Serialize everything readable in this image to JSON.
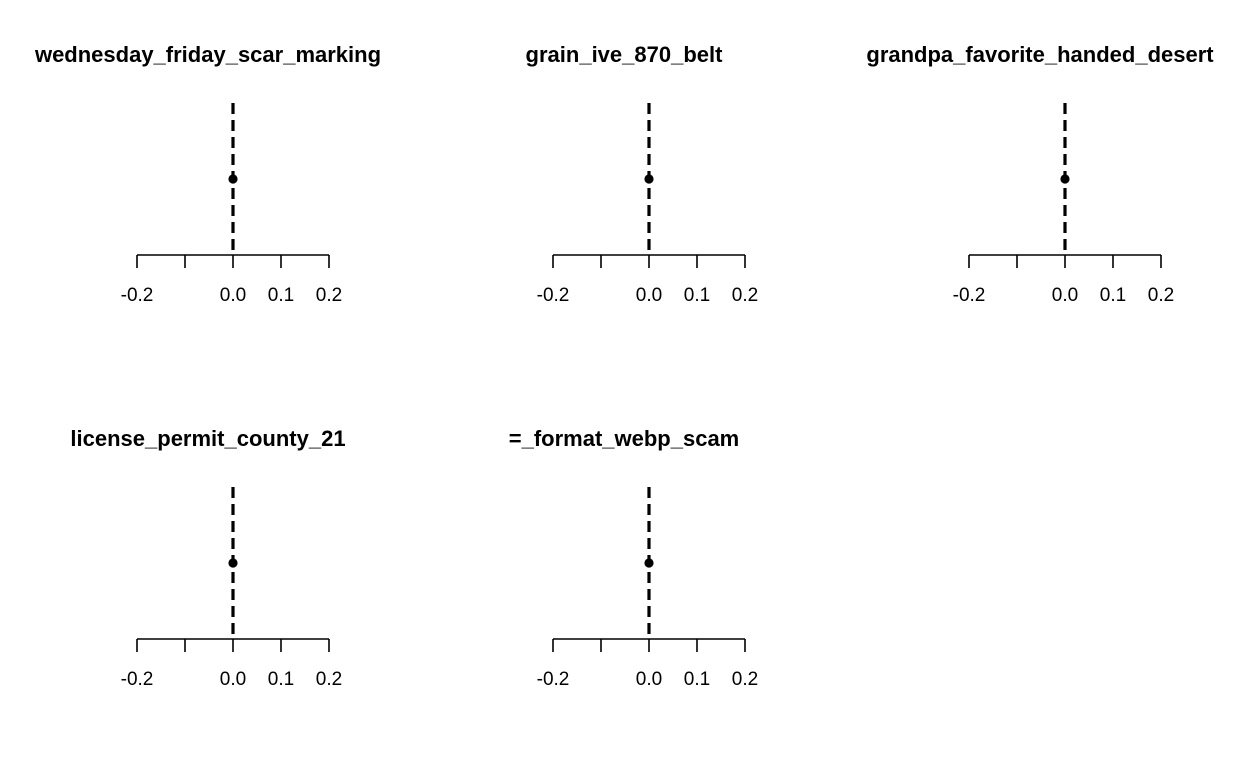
{
  "chart_data": [
    {
      "type": "scatter",
      "title": "wednesday_friday_scar_marking",
      "x_ticks": [
        -0.2,
        -0.1,
        0.0,
        0.1,
        0.2
      ],
      "x_tick_labels": [
        "-0.2",
        "",
        "0.0",
        "0.1",
        "0.2"
      ],
      "xlim": [
        -0.2,
        0.2
      ],
      "reference_line": {
        "x": 0.0,
        "style": "dashed"
      },
      "points": [
        {
          "x": 0.0
        }
      ]
    },
    {
      "type": "scatter",
      "title": "grain_ive_870_belt",
      "x_ticks": [
        -0.2,
        -0.1,
        0.0,
        0.1,
        0.2
      ],
      "x_tick_labels": [
        "-0.2",
        "",
        "0.0",
        "0.1",
        "0.2"
      ],
      "xlim": [
        -0.2,
        0.2
      ],
      "reference_line": {
        "x": 0.0,
        "style": "dashed"
      },
      "points": [
        {
          "x": 0.0
        }
      ]
    },
    {
      "type": "scatter",
      "title": "grandpa_favorite_handed_desert",
      "x_ticks": [
        -0.2,
        -0.1,
        0.0,
        0.1,
        0.2
      ],
      "x_tick_labels": [
        "-0.2",
        "",
        "0.0",
        "0.1",
        "0.2"
      ],
      "xlim": [
        -0.2,
        0.2
      ],
      "reference_line": {
        "x": 0.0,
        "style": "dashed"
      },
      "points": [
        {
          "x": 0.0
        }
      ]
    },
    {
      "type": "scatter",
      "title": "license_permit_county_21",
      "x_ticks": [
        -0.2,
        -0.1,
        0.0,
        0.1,
        0.2
      ],
      "x_tick_labels": [
        "-0.2",
        "",
        "0.0",
        "0.1",
        "0.2"
      ],
      "xlim": [
        -0.2,
        0.2
      ],
      "reference_line": {
        "x": 0.0,
        "style": "dashed"
      },
      "points": [
        {
          "x": 0.0
        }
      ]
    },
    {
      "type": "scatter",
      "title": "=_format_webp_scam",
      "x_ticks": [
        -0.2,
        -0.1,
        0.0,
        0.1,
        0.2
      ],
      "x_tick_labels": [
        "-0.2",
        "",
        "0.0",
        "0.1",
        "0.2"
      ],
      "xlim": [
        -0.2,
        0.2
      ],
      "reference_line": {
        "x": 0.0,
        "style": "dashed"
      },
      "points": [
        {
          "x": 0.0
        }
      ]
    }
  ]
}
